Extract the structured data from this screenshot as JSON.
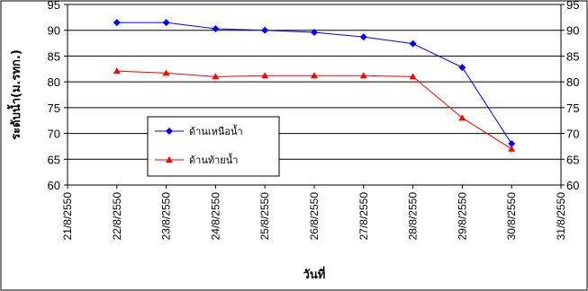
{
  "chart_data": {
    "type": "line",
    "ylabel": "ระดับน้ำ(ม.รทก.)",
    "xlabel": "วันที่",
    "ylim": [
      60,
      95
    ],
    "yticks": [
      "60",
      "65",
      "70",
      "75",
      "80",
      "85",
      "90",
      "95"
    ],
    "y2ticks": [
      "60",
      "65",
      "70",
      "75",
      "80",
      "85",
      "90",
      "95"
    ],
    "x": [
      "21/8/2550",
      "22/8/2550",
      "23/8/2550",
      "24/8/2550",
      "25/8/2550",
      "26/8/2550",
      "27/8/2550",
      "28/8/2550",
      "29/8/2550",
      "30/8/2550",
      "31/8/2550"
    ],
    "grid": true,
    "legend_position": "center-left",
    "series": [
      {
        "name": "ด้านเหนือน้ำ",
        "color": "#0000FF",
        "marker": "diamond",
        "points": [
          {
            "x": "22/8/2550",
            "y": 91.5
          },
          {
            "x": "23/8/2550",
            "y": 91.5
          },
          {
            "x": "24/8/2550",
            "y": 90.3
          },
          {
            "x": "25/8/2550",
            "y": 90.0
          },
          {
            "x": "26/8/2550",
            "y": 89.6
          },
          {
            "x": "27/8/2550",
            "y": 88.7
          },
          {
            "x": "28/8/2550",
            "y": 87.4
          },
          {
            "x": "29/8/2550",
            "y": 82.8
          },
          {
            "x": "30/8/2550",
            "y": 68.0
          }
        ]
      },
      {
        "name": "ด้านท้ายน้ำ",
        "color": "#FF0000",
        "marker": "triangle",
        "points": [
          {
            "x": "22/8/2550",
            "y": 82.1
          },
          {
            "x": "23/8/2550",
            "y": 81.7
          },
          {
            "x": "24/8/2550",
            "y": 81.0
          },
          {
            "x": "25/8/2550",
            "y": 81.2
          },
          {
            "x": "26/8/2550",
            "y": 81.2
          },
          {
            "x": "27/8/2550",
            "y": 81.2
          },
          {
            "x": "28/8/2550",
            "y": 81.0
          },
          {
            "x": "29/8/2550",
            "y": 73.0
          },
          {
            "x": "30/8/2550",
            "y": 67.0
          }
        ]
      }
    ]
  }
}
